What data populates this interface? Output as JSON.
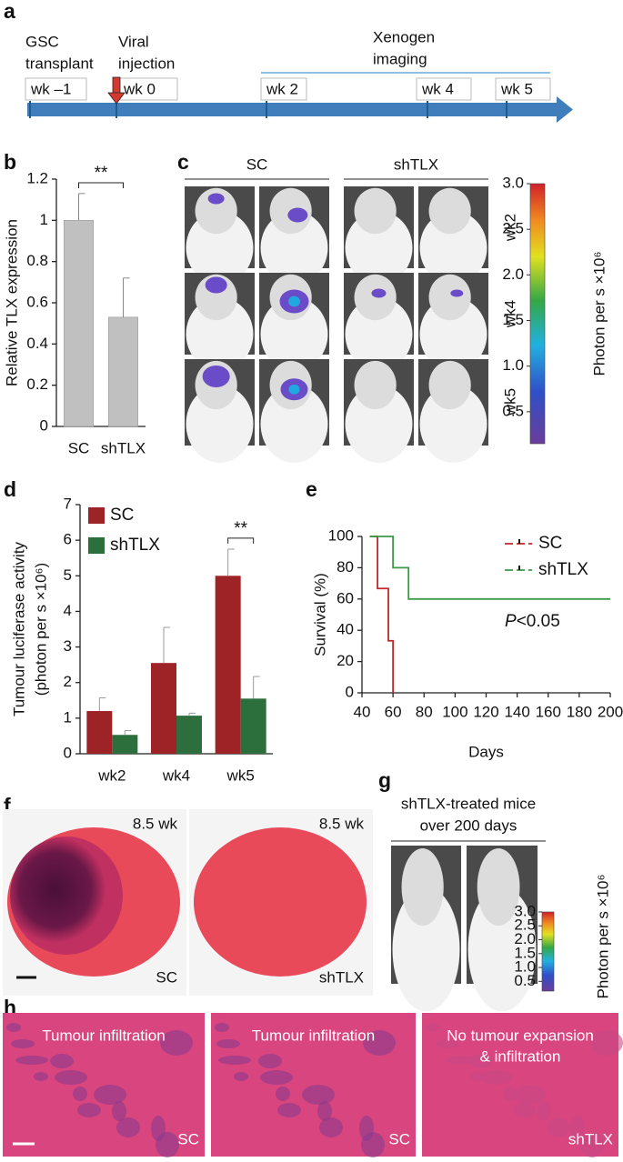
{
  "figure": {
    "panel_labels": [
      "a",
      "b",
      "c",
      "d",
      "e",
      "f",
      "g",
      "h"
    ],
    "timeline": {
      "events": [
        {
          "lines": [
            "GSC",
            "transplant"
          ]
        },
        {
          "lines": [
            "Viral",
            "injection"
          ]
        },
        {
          "lines": [
            "Xenogen",
            "imaging"
          ]
        }
      ],
      "weeks": [
        "wk –1",
        "wk 0",
        "wk 2",
        "wk 4",
        "wk 5"
      ]
    },
    "imaging_c": {
      "groups": [
        "SC",
        "shTLX"
      ],
      "rows": [
        "wk2",
        "wk4",
        "wk5"
      ],
      "colorbar": {
        "label": "Photon per s ×10⁶",
        "clim": [
          0.15,
          3
        ],
        "ticks": [
          0.5,
          {
            "value": 1,
            "label": "1.0"
          },
          1.5,
          {
            "value": 2,
            "label": "2.0"
          },
          2.5,
          {
            "value": 3,
            "label": "3.0"
          }
        ]
      }
    },
    "histology_f": {
      "panels": [
        {
          "time": "8.5 wk",
          "group": "SC"
        },
        {
          "time": "8.5 wk",
          "group": "shTLX"
        }
      ]
    },
    "imaging_g": {
      "title_lines": [
        "shTLX-treated mice",
        "over 200 days"
      ],
      "colorbar": {
        "label": "Photon per s ×10⁶",
        "clim": [
          0.15,
          3
        ],
        "ticks": [
          0.5,
          {
            "value": 1,
            "label": "1.0"
          },
          1.5,
          {
            "value": 2,
            "label": "2.0"
          },
          2.5,
          {
            "value": 3,
            "label": "3.0"
          }
        ]
      }
    },
    "histology_h": {
      "panels": [
        {
          "caption_lines": [
            "Tumour infiltration"
          ],
          "group": "SC"
        },
        {
          "caption_lines": [
            "Tumour infiltration"
          ],
          "group": "SC"
        },
        {
          "caption_lines": [
            "No tumour expansion",
            "& infiltration"
          ],
          "group": "shTLX"
        }
      ]
    }
  },
  "chart_data": [
    {
      "type": "bar",
      "ylabel": "Relative TLX expression",
      "categories": [
        "SC",
        "shTLX"
      ],
      "values": [
        1,
        0.53
      ],
      "errors": [
        0.13,
        0.19
      ],
      "color": "#c0c0c0",
      "ylim": [
        0,
        1.2
      ],
      "yticks": [
        0,
        0.2,
        0.4,
        0.6,
        0.8,
        1,
        1.2
      ],
      "annotations": [
        {
          "text": "**",
          "between": [
            0,
            1
          ]
        }
      ]
    },
    {
      "type": "bar",
      "ylabel_lines": [
        "Tumour luciferase activity",
        "(photon per s ×10⁶)"
      ],
      "categories": [
        "wk2",
        "wk4",
        "wk5"
      ],
      "series": [
        {
          "name": "SC",
          "color": "#9e2327",
          "values": [
            1.2,
            2.55,
            5.0
          ],
          "errors": [
            0.37,
            1.0,
            0.75
          ]
        },
        {
          "name": "shTLX",
          "color": "#2c6e3c",
          "values": [
            0.53,
            1.07,
            1.55
          ],
          "errors": [
            0.12,
            0.07,
            0.62
          ]
        }
      ],
      "ylim": [
        0,
        7
      ],
      "yticks": [
        0,
        1,
        2,
        3,
        4,
        5,
        6,
        7
      ],
      "legend": "upper left",
      "annotations": [
        {
          "text": "**",
          "category": 2
        }
      ]
    },
    {
      "type": "line",
      "xlabel": "Days",
      "ylabel": "Survival (%)",
      "series": [
        {
          "name": "SC",
          "color": "#c0272d",
          "x": [
            45,
            50,
            50,
            57,
            57,
            60,
            60
          ],
          "values": [
            100,
            100,
            66.7,
            66.7,
            33.3,
            33.3,
            0
          ]
        },
        {
          "name": "shTLX",
          "color": "#3a9a48",
          "x": [
            45,
            60,
            60,
            70,
            70,
            200
          ],
          "values": [
            100,
            100,
            80,
            80,
            60,
            60
          ]
        }
      ],
      "xlim": [
        40,
        200
      ],
      "xticks": [
        40,
        60,
        80,
        100,
        120,
        140,
        160,
        180,
        200
      ],
      "ylim": [
        0,
        100
      ],
      "yticks": [
        0,
        20,
        40,
        60,
        80,
        100
      ],
      "legend": "upper right",
      "annotations": [
        {
          "text": "P<0.05"
        }
      ]
    }
  ]
}
